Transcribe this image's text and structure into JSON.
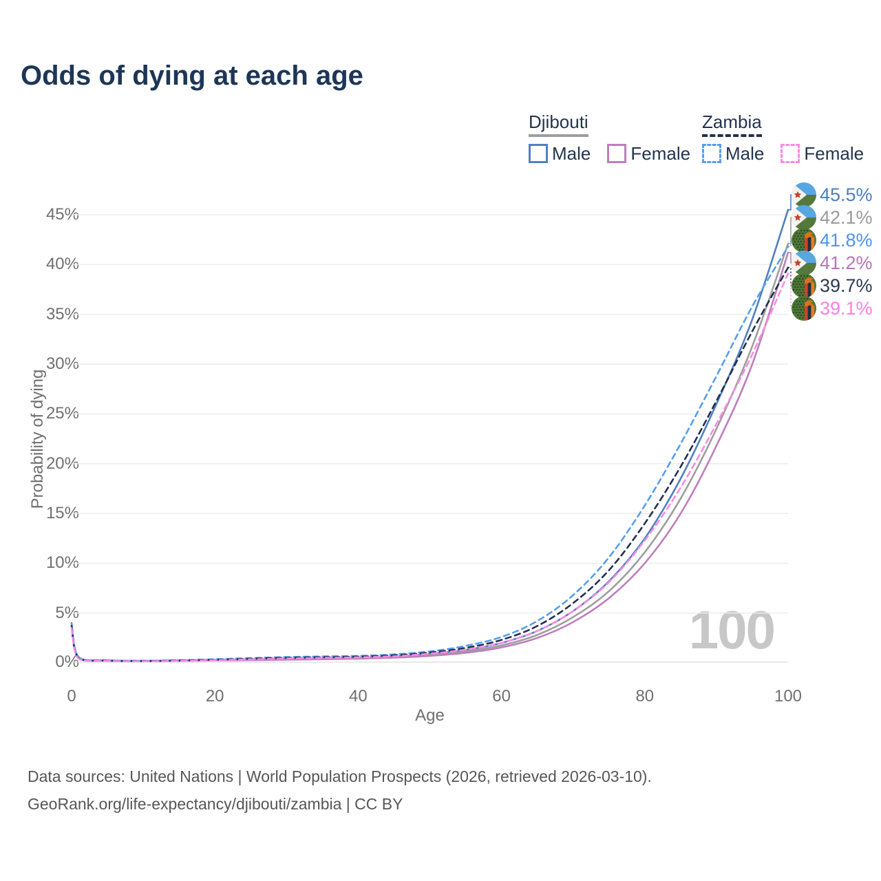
{
  "title": "Odds of dying at each age",
  "legend": {
    "groups": [
      {
        "name": "Djibouti",
        "line_style": "solid",
        "line_color": "#9e9e9e",
        "items": [
          {
            "label": "Male",
            "color": "#5081c1"
          },
          {
            "label": "Female",
            "color": "#bd7ebe"
          }
        ]
      },
      {
        "name": "Zambia",
        "line_style": "dashed",
        "line_color": "#23304d",
        "items": [
          {
            "label": "Male",
            "color": "#559df2"
          },
          {
            "label": "Female",
            "color": "#fb8ae4"
          }
        ]
      }
    ]
  },
  "watermark": "100",
  "sources": {
    "line1": "Data sources: United Nations | World Population Prospects (2026, retrieved 2026-03-10).",
    "line2": "GeoRank.org/life-expectancy/djibouti/zambia | CC BY"
  },
  "chart_data": {
    "type": "line",
    "title": "Odds of dying at each age",
    "xlabel": "Age",
    "ylabel": "Probability of dying",
    "x_ticks": [
      0,
      20,
      40,
      60,
      80,
      100
    ],
    "y_tick_labels": [
      "0%",
      "5%",
      "10%",
      "15%",
      "20%",
      "25%",
      "30%",
      "35%",
      "40%",
      "45%"
    ],
    "y_tick_values": [
      0,
      5,
      10,
      15,
      20,
      25,
      30,
      35,
      40,
      45
    ],
    "ylim": [
      0,
      47
    ],
    "xlim": [
      0,
      100
    ],
    "grid": "horizontal",
    "legend_position": "top-right",
    "x": [
      0,
      1,
      5,
      10,
      15,
      20,
      25,
      30,
      35,
      40,
      45,
      50,
      55,
      60,
      65,
      70,
      75,
      80,
      85,
      90,
      95,
      100
    ],
    "series": [
      {
        "name": "Djibouti Male",
        "country": "Djibouti",
        "sex": "Male",
        "color": "#5081c1",
        "dashed": false,
        "flag": "djibouti",
        "end_label": "45.5%",
        "end_label_color": "#4a7fc1",
        "end_value": 45.5,
        "values": [
          4.0,
          0.55,
          0.25,
          0.2,
          0.25,
          0.3,
          0.35,
          0.4,
          0.45,
          0.52,
          0.65,
          0.9,
          1.3,
          2.0,
          3.2,
          5.2,
          8.2,
          12.5,
          18.5,
          26.0,
          34.5,
          45.5
        ]
      },
      {
        "name": "Djibouti",
        "country": "Djibouti",
        "sex": "Both",
        "color": "#9e9e9e",
        "dashed": false,
        "flag": "djibouti",
        "end_label": "42.1%",
        "end_label_color": "#9a9a9a",
        "end_value": 42.1,
        "values": [
          3.8,
          0.5,
          0.22,
          0.18,
          0.22,
          0.27,
          0.31,
          0.36,
          0.41,
          0.47,
          0.58,
          0.8,
          1.15,
          1.75,
          2.8,
          4.6,
          7.2,
          11.1,
          16.5,
          23.5,
          31.8,
          42.1
        ]
      },
      {
        "name": "Zambia Male",
        "country": "Zambia",
        "sex": "Male",
        "color": "#559df2",
        "dashed": true,
        "flag": "zambia",
        "end_label": "41.8%",
        "end_label_color": "#4b94f4",
        "end_value": 41.8,
        "values": [
          3.9,
          0.5,
          0.25,
          0.2,
          0.26,
          0.36,
          0.48,
          0.58,
          0.64,
          0.7,
          0.85,
          1.15,
          1.7,
          2.6,
          4.2,
          6.8,
          10.6,
          15.8,
          22.0,
          28.8,
          35.8,
          41.8
        ]
      },
      {
        "name": "Djibouti Female",
        "country": "Djibouti",
        "sex": "Female",
        "color": "#bd7ebe",
        "dashed": false,
        "flag": "djibouti",
        "end_label": "41.2%",
        "end_label_color": "#b577b5",
        "end_value": 41.2,
        "values": [
          3.6,
          0.45,
          0.2,
          0.16,
          0.2,
          0.24,
          0.27,
          0.31,
          0.36,
          0.42,
          0.52,
          0.7,
          1.0,
          1.55,
          2.5,
          4.1,
          6.5,
          10.0,
          15.0,
          21.8,
          30.0,
          41.2
        ]
      },
      {
        "name": "Zambia",
        "country": "Zambia",
        "sex": "Both",
        "color": "#23304d",
        "dashed": true,
        "flag": "zambia",
        "end_label": "39.7%",
        "end_label_color": "#2b3950",
        "end_value": 39.7,
        "values": [
          3.7,
          0.45,
          0.22,
          0.18,
          0.23,
          0.31,
          0.41,
          0.5,
          0.56,
          0.62,
          0.75,
          1.03,
          1.5,
          2.3,
          3.7,
          6.0,
          9.3,
          14.0,
          19.7,
          26.3,
          33.3,
          39.7
        ]
      },
      {
        "name": "Zambia Female",
        "country": "Zambia",
        "sex": "Female",
        "color": "#fb8ae4",
        "dashed": true,
        "flag": "zambia",
        "end_label": "39.1%",
        "end_label_color": "#fb7fe3",
        "end_value": 39.1,
        "values": [
          3.5,
          0.4,
          0.2,
          0.16,
          0.2,
          0.27,
          0.35,
          0.43,
          0.49,
          0.55,
          0.66,
          0.92,
          1.33,
          2.0,
          3.2,
          5.2,
          8.1,
          12.3,
          17.6,
          24.0,
          31.0,
          39.1
        ]
      }
    ]
  }
}
